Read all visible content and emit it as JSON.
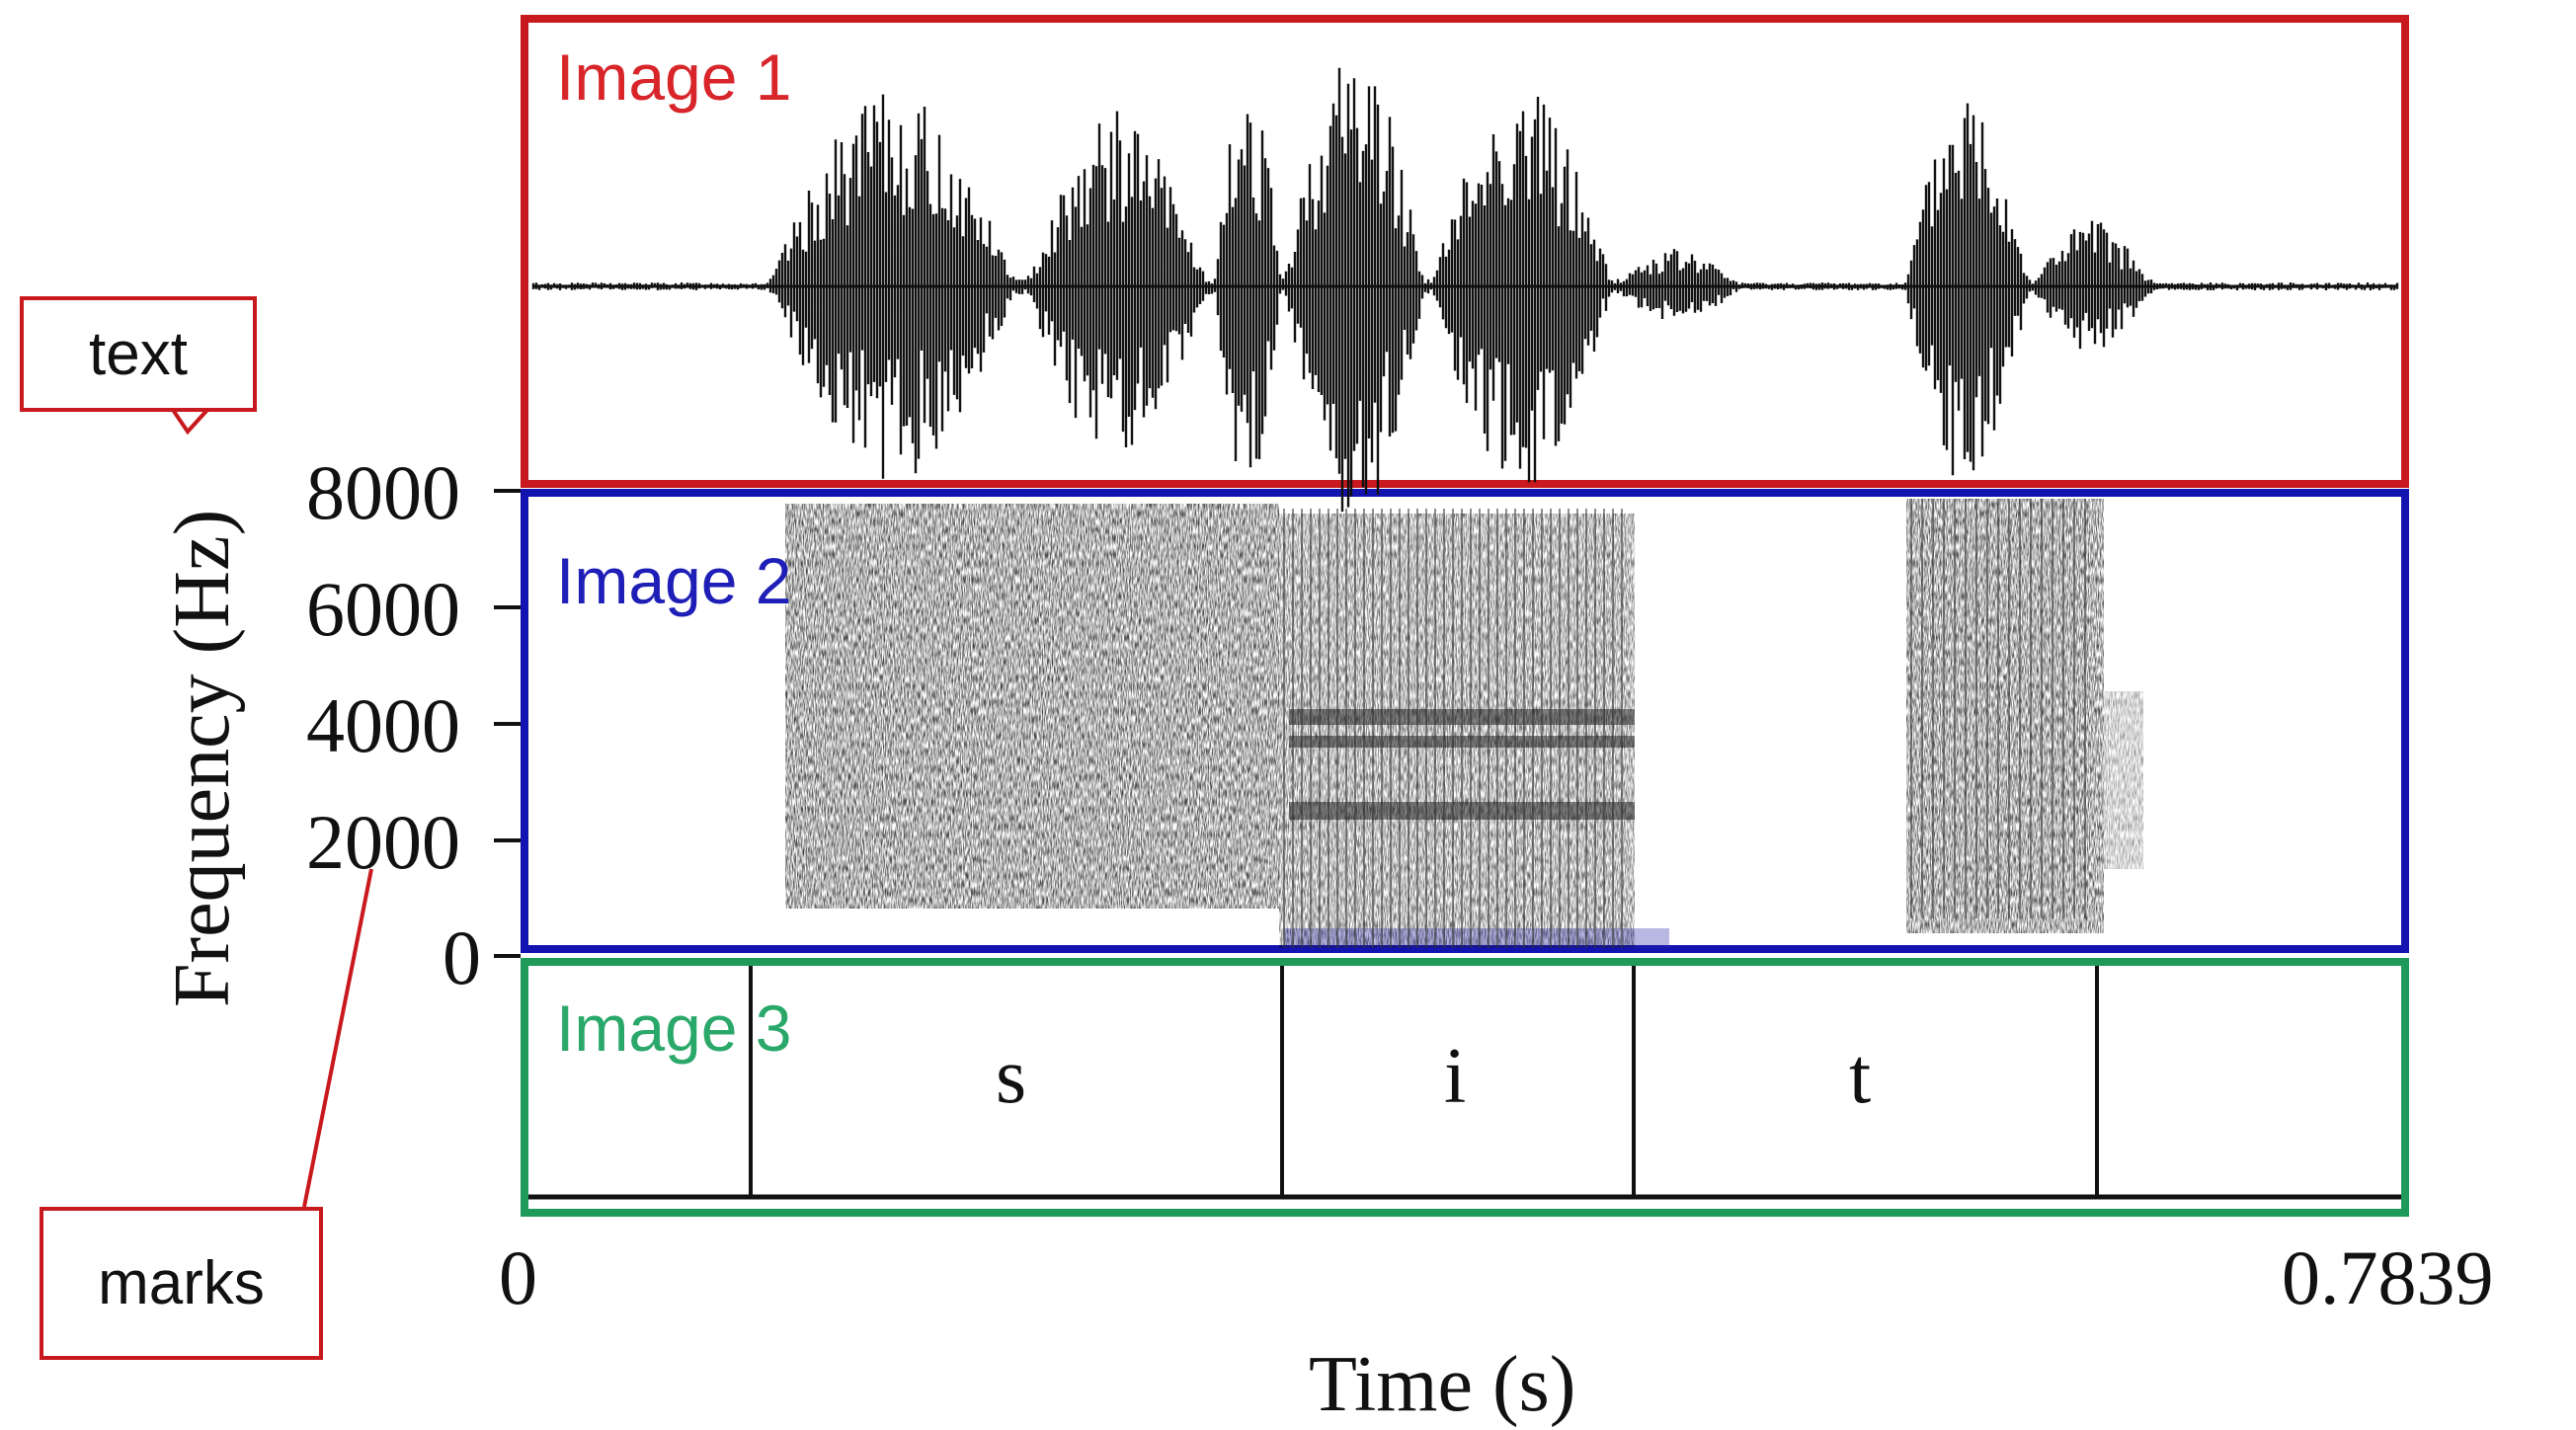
{
  "panels": {
    "image1": "Image 1",
    "image2": "Image 2",
    "image3": "Image 3"
  },
  "y_axis": {
    "title": "Frequency (Hz)",
    "ticks": [
      "8000",
      "6000",
      "4000",
      "2000",
      "0"
    ]
  },
  "x_axis": {
    "title": "Time (s)",
    "start": "0",
    "end": "0.7839"
  },
  "segments": [
    "s",
    "i",
    "t"
  ],
  "callouts": {
    "text": "text",
    "marks": "marks"
  },
  "colors": {
    "image1_border": "#c8191e",
    "image2_border": "#1313b0",
    "image3_border": "#1f9a5b",
    "callout_border": "#c8191e"
  }
}
